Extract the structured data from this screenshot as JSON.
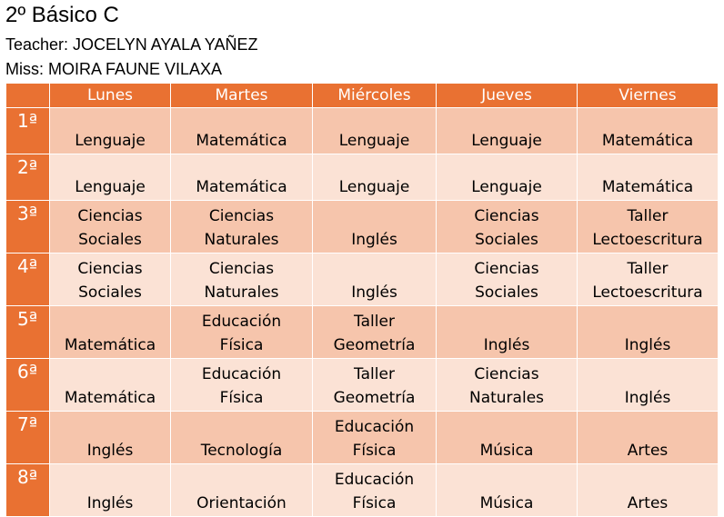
{
  "header": {
    "title": "2º Básico C",
    "teacher": "Teacher: JOCELYN AYALA YAÑEZ",
    "miss": "Miss: MOIRA FAUNE VILAXA"
  },
  "schedule": {
    "days": [
      "Lunes",
      "Martes",
      "Miércoles",
      "Jueves",
      "Viernes"
    ],
    "rows": [
      {
        "period": "1ª",
        "cells": [
          [
            "Lenguaje"
          ],
          [
            "Matemática"
          ],
          [
            "Lenguaje"
          ],
          [
            "Lenguaje"
          ],
          [
            "Matemática"
          ]
        ]
      },
      {
        "period": "2ª",
        "cells": [
          [
            "Lenguaje"
          ],
          [
            "Matemática"
          ],
          [
            "Lenguaje"
          ],
          [
            "Lenguaje"
          ],
          [
            "Matemática"
          ]
        ]
      },
      {
        "period": "3ª",
        "cells": [
          [
            "Ciencias",
            "Sociales"
          ],
          [
            "Ciencias",
            "Naturales"
          ],
          [
            "Inglés"
          ],
          [
            "Ciencias",
            "Sociales"
          ],
          [
            "Taller",
            "Lectoescritura"
          ]
        ]
      },
      {
        "period": "4ª",
        "cells": [
          [
            "Ciencias",
            "Sociales"
          ],
          [
            "Ciencias",
            "Naturales"
          ],
          [
            "Inglés"
          ],
          [
            "Ciencias",
            "Sociales"
          ],
          [
            "Taller",
            "Lectoescritura"
          ]
        ]
      },
      {
        "period": "5ª",
        "cells": [
          [
            "Matemática"
          ],
          [
            "Educación",
            "Física"
          ],
          [
            "Taller",
            "Geometría"
          ],
          [
            "Inglés"
          ],
          [
            "Inglés"
          ]
        ]
      },
      {
        "period": "6ª",
        "cells": [
          [
            "Matemática"
          ],
          [
            "Educación",
            "Física"
          ],
          [
            "Taller",
            "Geometría"
          ],
          [
            "Ciencias",
            "Naturales"
          ],
          [
            "Inglés"
          ]
        ]
      },
      {
        "period": "7ª",
        "cells": [
          [
            "Inglés"
          ],
          [
            "Tecnología"
          ],
          [
            "Educación",
            "Física"
          ],
          [
            "Música"
          ],
          [
            "Artes"
          ]
        ]
      },
      {
        "period": "8ª",
        "cells": [
          [
            "Inglés"
          ],
          [
            "Orientación"
          ],
          [
            "Educación",
            "Física"
          ],
          [
            "Música"
          ],
          [
            "Artes"
          ]
        ]
      }
    ]
  },
  "colors": {
    "header": "#E97132",
    "row_dark": "#F6C5AC",
    "row_light": "#FBE2D5"
  }
}
